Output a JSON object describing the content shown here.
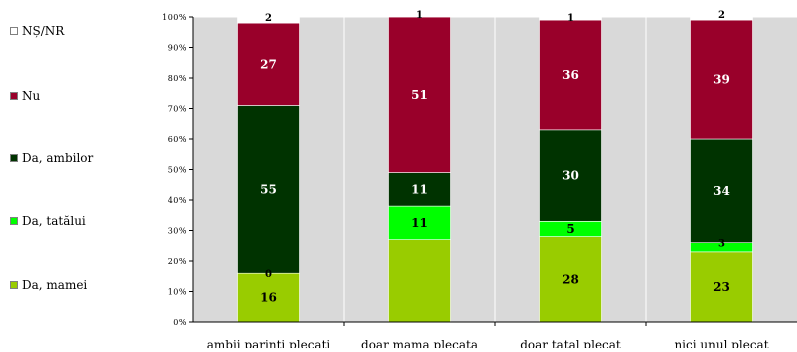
{
  "chart_data": {
    "type": "bar",
    "stacked": true,
    "orientation": "vertical",
    "categories": [
      "ambii parinti plecati",
      "doar mama plecata",
      "doar tatal plecat",
      "nici unul plecat"
    ],
    "series": [
      {
        "name": "Da, mamei",
        "color": "#99cc00",
        "label_color": "#000000",
        "values": [
          16,
          27,
          28,
          23
        ]
      },
      {
        "name": "Da, tatălui",
        "color": "#00ff00",
        "label_color": "#000000",
        "values": [
          0,
          11,
          5,
          3
        ]
      },
      {
        "name": "Da, ambilor",
        "color": "#003300",
        "label_color": "#ffffff",
        "values": [
          55,
          11,
          30,
          34
        ]
      },
      {
        "name": "Nu",
        "color": "#99002a",
        "label_color": "#ffffff",
        "values": [
          27,
          51,
          36,
          39
        ]
      },
      {
        "name": "NȘ/NR",
        "color": "#ffffff",
        "label_color": "#000000",
        "values": [
          2,
          1,
          1,
          2
        ]
      }
    ],
    "hidden_labels": [
      [
        1,
        0
      ]
    ],
    "y_ticks": [
      "0%",
      "10%",
      "20%",
      "30%",
      "40%",
      "50%",
      "60%",
      "70%",
      "80%",
      "90%",
      "100%"
    ],
    "ylim": [
      0,
      100
    ],
    "y_unit": "percent",
    "grid": true,
    "plot_background": "#d9d9d9",
    "legend_position": "left",
    "legend_order": [
      4,
      3,
      2,
      1,
      0
    ],
    "title": "",
    "xlabel": "",
    "ylabel": ""
  }
}
